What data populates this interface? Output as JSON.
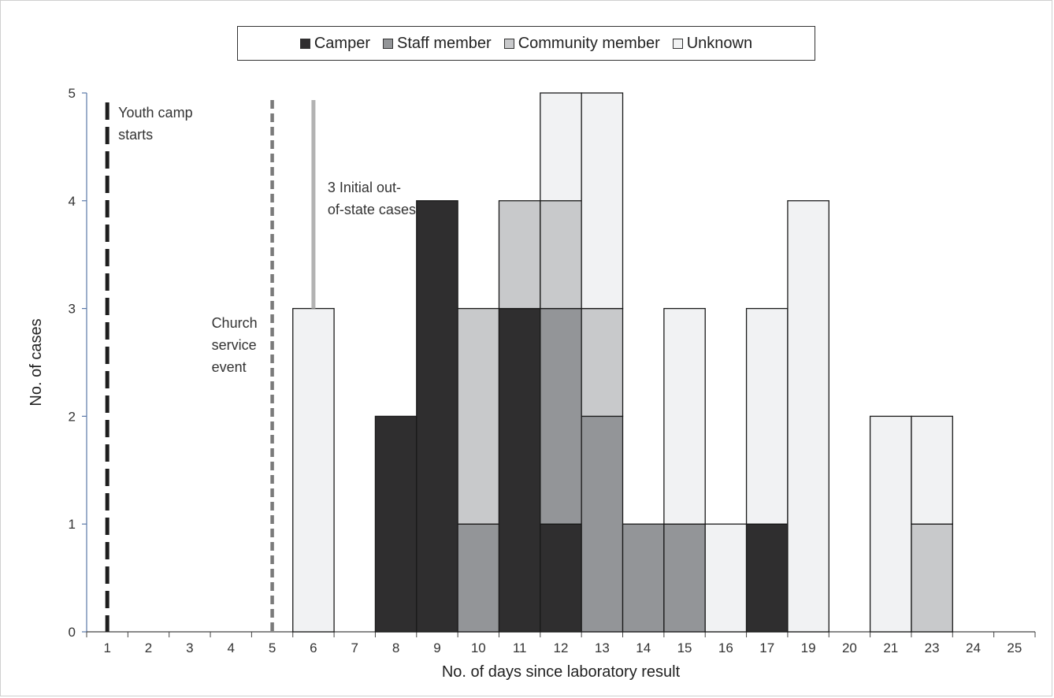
{
  "chart_data": {
    "type": "bar",
    "stacked": true,
    "title": "",
    "xlabel": "No. of days since laboratory result",
    "ylabel": "No. of cases",
    "ylim": [
      0,
      5
    ],
    "yticks": [
      "0",
      "1",
      "2",
      "3",
      "4",
      "5"
    ],
    "categories": [
      "1",
      "2",
      "3",
      "4",
      "5",
      "6",
      "7",
      "8",
      "9",
      "10",
      "11",
      "12",
      "13",
      "14",
      "15",
      "16",
      "17",
      "19",
      "20",
      "21",
      "23",
      "24",
      "25"
    ],
    "series": [
      {
        "name": "Camper",
        "color": "#2f2e2f",
        "values": [
          0,
          0,
          0,
          0,
          0,
          0,
          0,
          2,
          4,
          0,
          3,
          1,
          0,
          0,
          0,
          0,
          1,
          0,
          0,
          0,
          0,
          0,
          0
        ]
      },
      {
        "name": "Staff member",
        "color": "#939598",
        "values": [
          0,
          0,
          0,
          0,
          0,
          0,
          0,
          0,
          0,
          1,
          0,
          2,
          2,
          1,
          1,
          0,
          0,
          0,
          0,
          0,
          0,
          0,
          0
        ]
      },
      {
        "name": "Community member",
        "color": "#c8c9cb",
        "values": [
          0,
          0,
          0,
          0,
          0,
          0,
          0,
          0,
          0,
          2,
          1,
          1,
          1,
          0,
          0,
          0,
          0,
          0,
          0,
          0,
          1,
          0,
          0
        ]
      },
      {
        "name": "Unknown",
        "color": "#f1f2f3",
        "values": [
          0,
          0,
          0,
          0,
          0,
          3,
          0,
          0,
          0,
          0,
          0,
          1,
          2,
          0,
          2,
          1,
          2,
          4,
          0,
          2,
          1,
          0,
          0
        ]
      }
    ],
    "legend": {
      "position": "top"
    },
    "annotations": [
      {
        "text_lines": [
          "Youth camp",
          "starts"
        ],
        "category": "1",
        "style": "dashed-black"
      },
      {
        "text_lines": [
          "Church",
          "service",
          "event"
        ],
        "category": "5",
        "style": "dashed-gray"
      },
      {
        "text_lines": [
          "3 Initial out-",
          "of-state cases"
        ],
        "category": "6",
        "style": "solid-light-gray",
        "from_value": 3,
        "to_value": 5
      }
    ]
  }
}
